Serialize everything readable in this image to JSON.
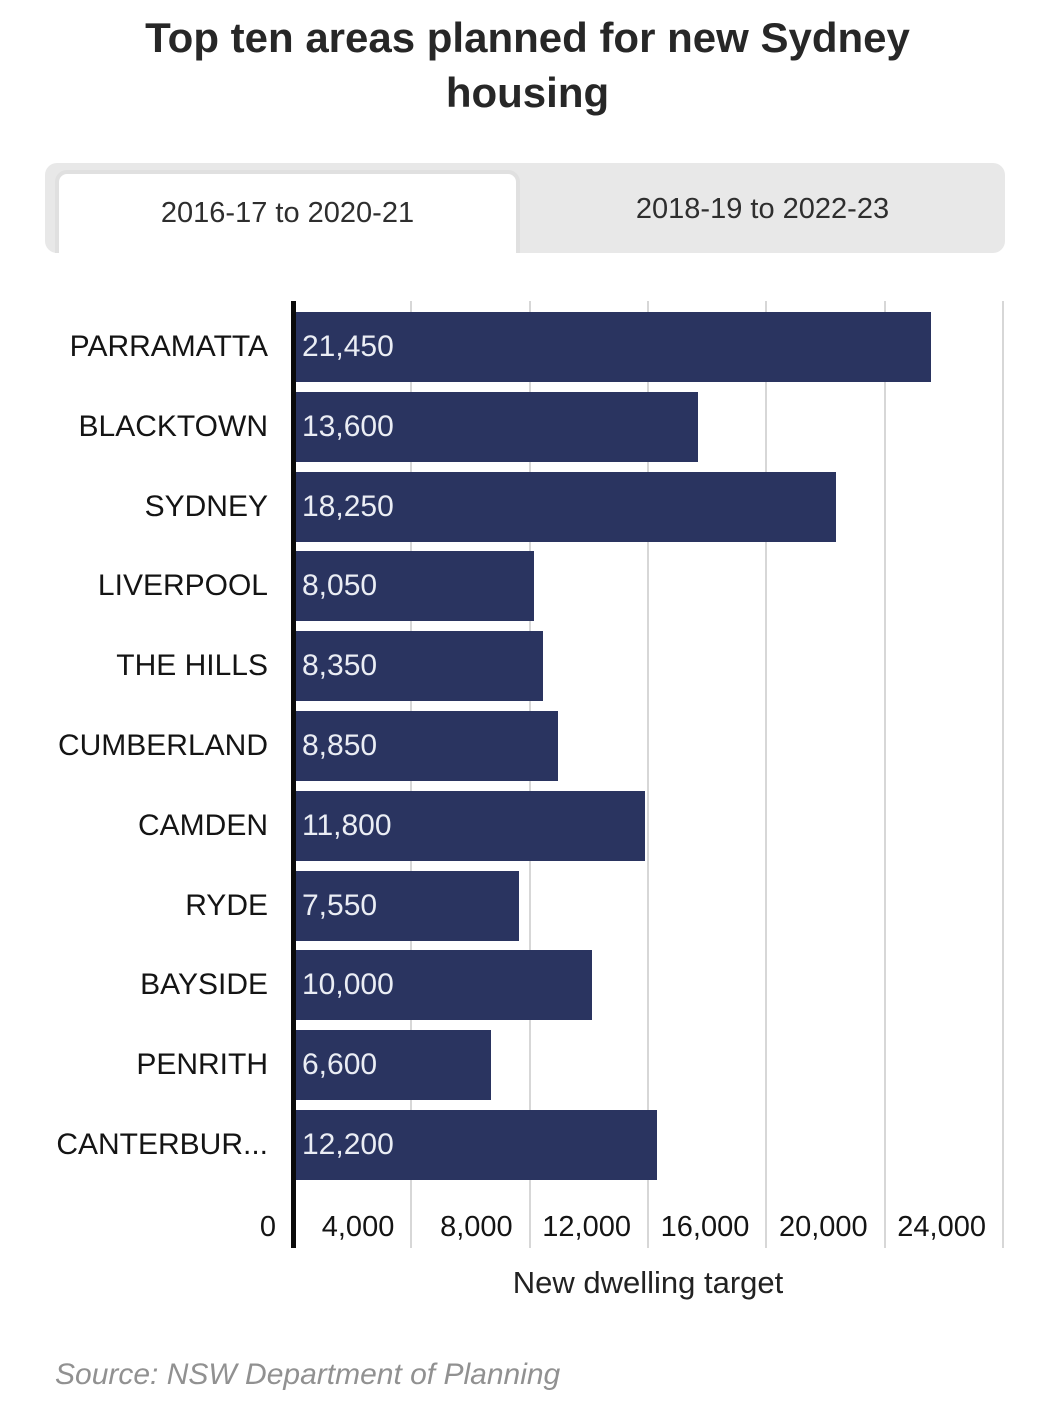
{
  "header": {
    "title": "Top ten areas planned for new Sydney housing"
  },
  "tabs": [
    {
      "label": "2016-17 to 2020-21",
      "active": true
    },
    {
      "label": "2018-19 to 2022-23",
      "active": false
    }
  ],
  "chart_data": {
    "type": "bar",
    "orientation": "horizontal",
    "title": "Top ten areas planned for new Sydney housing",
    "xlabel": "New dwelling target",
    "xlim": [
      0,
      24000
    ],
    "xticks": [
      0,
      4000,
      8000,
      12000,
      16000,
      20000,
      24000
    ],
    "xtick_labels": [
      "0",
      "4,000",
      "8,000",
      "12,000",
      "16,000",
      "20,000",
      "24,000"
    ],
    "grid": "vertical",
    "legend": "none",
    "bar_color": "#2a3460",
    "categories": [
      "PARRAMATTA",
      "BLACKTOWN",
      "SYDNEY",
      "LIVERPOOL",
      "THE HILLS",
      "CUMBERLAND",
      "CAMDEN",
      "RYDE",
      "BAYSIDE",
      "PENRITH",
      "CANTERBUR..."
    ],
    "values": [
      21450,
      13600,
      18250,
      8050,
      8350,
      8850,
      11800,
      7550,
      10000,
      6600,
      12200
    ],
    "value_labels": [
      "21,450",
      "13,600",
      "18,250",
      "8,050",
      "8,350",
      "8,850",
      "11,800",
      "7,550",
      "10,000",
      "6,600",
      "12,200"
    ]
  },
  "footer": {
    "source": "Source: NSW Department of Planning"
  },
  "colors": {
    "bar": "#2a3460",
    "grid": "#d7d7d7",
    "axis": "#0a0a0a",
    "tab_bg": "#e8e8e8",
    "value_text": "#eaedf4"
  }
}
